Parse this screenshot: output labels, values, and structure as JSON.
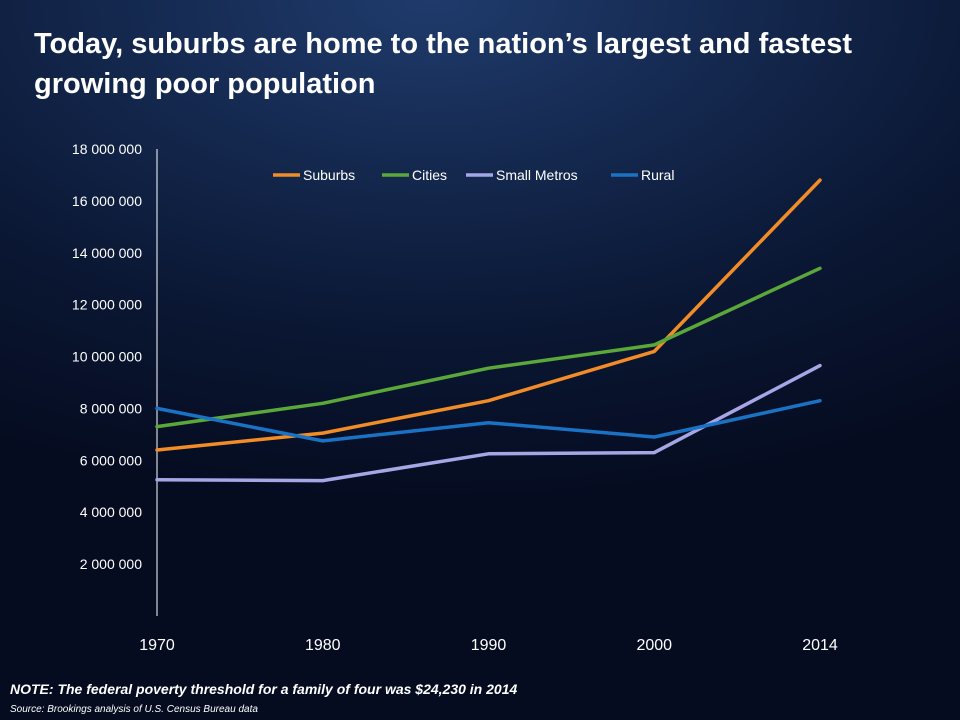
{
  "slide": {
    "title": "Today, suburbs are home to the nation’s largest and fastest growing poor population",
    "note": "NOTE: The federal poverty threshold for a family of four was $24,230 in 2014",
    "source": "Source: Brookings analysis of U.S. Census Bureau data"
  },
  "chart_data": {
    "type": "line",
    "categories": [
      "1970",
      "1980",
      "1990",
      "2000",
      "2014"
    ],
    "yticks": [
      2000000,
      4000000,
      6000000,
      8000000,
      10000000,
      12000000,
      14000000,
      16000000,
      18000000
    ],
    "ytick_labels": [
      "2 000 000",
      "4 000 000",
      "6 000 000",
      "8 000 000",
      "10 000 000",
      "12 000 000",
      "14 000 000",
      "16 000 000",
      "18 000 000"
    ],
    "ylim": [
      0,
      18000000
    ],
    "grid": false,
    "legend_position": "top",
    "series": [
      {
        "name": "Suburbs",
        "color": "#f28c28",
        "values": [
          6400000,
          7050000,
          8300000,
          10200000,
          16800000
        ]
      },
      {
        "name": "Cities",
        "color": "#5ba83a",
        "values": [
          7300000,
          8200000,
          9550000,
          10450000,
          13400000
        ]
      },
      {
        "name": "Small Metros",
        "color": "#a6a6e6",
        "values": [
          5250000,
          5220000,
          6250000,
          6300000,
          9650000
        ]
      },
      {
        "name": "Rural",
        "color": "#1a72c4",
        "values": [
          8000000,
          6750000,
          7450000,
          6900000,
          8300000
        ]
      }
    ]
  }
}
